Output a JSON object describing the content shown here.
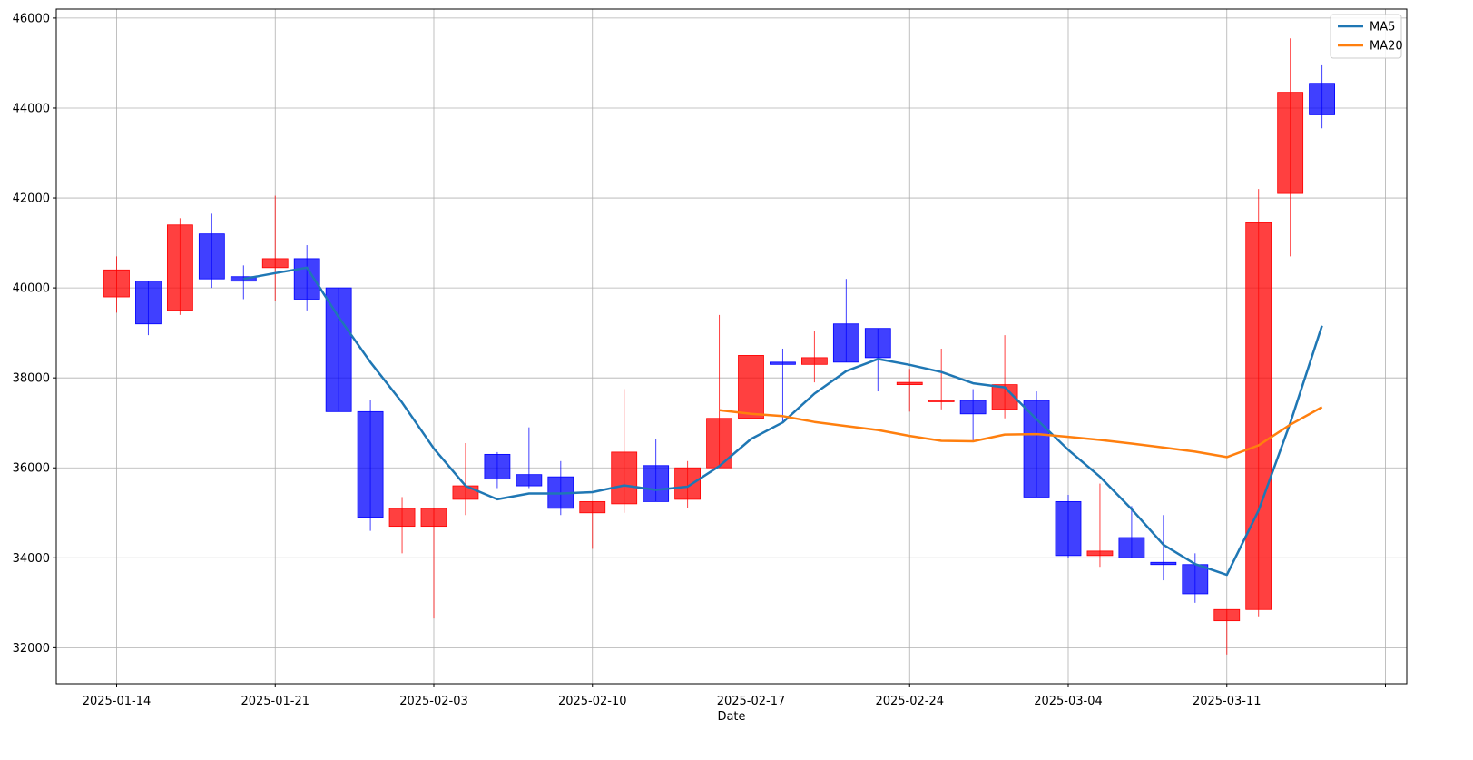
{
  "chart_data": {
    "type": "candlestick",
    "title": "",
    "xlabel": "Date",
    "ylabel": "",
    "ylim": [
      31200,
      46200
    ],
    "yticks": [
      32000,
      34000,
      36000,
      38000,
      40000,
      42000,
      44000,
      46000
    ],
    "xticks": [
      {
        "index": 0,
        "label": "2025-01-14"
      },
      {
        "index": 5,
        "label": "2025-01-21"
      },
      {
        "index": 10,
        "label": "2025-02-03"
      },
      {
        "index": 15,
        "label": "2025-02-10"
      },
      {
        "index": 20,
        "label": "2025-02-17"
      },
      {
        "index": 25,
        "label": "2025-02-24"
      },
      {
        "index": 30,
        "label": "2025-03-04"
      },
      {
        "index": 35,
        "label": "2025-03-11"
      },
      {
        "index": 40,
        "label": ""
      }
    ],
    "grid": true,
    "legend_position": "top-right",
    "colors": {
      "up": "#ff0000",
      "down": "#0000ff",
      "ma5": "#1f77b4",
      "ma20": "#ff7f0e",
      "grid": "#b0b0b0"
    },
    "candles": [
      {
        "open": 39800,
        "high": 40700,
        "low": 39450,
        "close": 40400
      },
      {
        "open": 40150,
        "high": 40150,
        "low": 38950,
        "close": 39200
      },
      {
        "open": 39500,
        "high": 41550,
        "low": 39400,
        "close": 41400
      },
      {
        "open": 41200,
        "high": 41650,
        "low": 40000,
        "close": 40200
      },
      {
        "open": 40250,
        "high": 40500,
        "low": 39750,
        "close": 40150
      },
      {
        "open": 40450,
        "high": 42050,
        "low": 39700,
        "close": 40650
      },
      {
        "open": 40650,
        "high": 40950,
        "low": 39500,
        "close": 39750
      },
      {
        "open": 40000,
        "high": 40000,
        "low": 37250,
        "close": 37250
      },
      {
        "open": 37250,
        "high": 37500,
        "low": 34600,
        "close": 34900
      },
      {
        "open": 34700,
        "high": 35350,
        "low": 34100,
        "close": 35100
      },
      {
        "open": 34700,
        "high": 35100,
        "low": 32650,
        "close": 35100
      },
      {
        "open": 35300,
        "high": 36550,
        "low": 34950,
        "close": 35600
      },
      {
        "open": 36300,
        "high": 36350,
        "low": 35550,
        "close": 35750
      },
      {
        "open": 35850,
        "high": 36900,
        "low": 35550,
        "close": 35600
      },
      {
        "open": 35800,
        "high": 36150,
        "low": 34950,
        "close": 35100
      },
      {
        "open": 35000,
        "high": 35250,
        "low": 34200,
        "close": 35250
      },
      {
        "open": 35200,
        "high": 37750,
        "low": 35000,
        "close": 36350
      },
      {
        "open": 36050,
        "high": 36650,
        "low": 35250,
        "close": 35250
      },
      {
        "open": 35300,
        "high": 36150,
        "low": 35100,
        "close": 36000
      },
      {
        "open": 36000,
        "high": 39400,
        "low": 36000,
        "close": 37100
      },
      {
        "open": 37100,
        "high": 39350,
        "low": 36250,
        "close": 38500
      },
      {
        "open": 38350,
        "high": 38650,
        "low": 37000,
        "close": 38300
      },
      {
        "open": 38300,
        "high": 39050,
        "low": 37900,
        "close": 38450
      },
      {
        "open": 39200,
        "high": 40200,
        "low": 38350,
        "close": 38350
      },
      {
        "open": 39100,
        "high": 39100,
        "low": 37700,
        "close": 38450
      },
      {
        "open": 37850,
        "high": 38200,
        "low": 37250,
        "close": 37900
      },
      {
        "open": 37500,
        "high": 38650,
        "low": 37300,
        "close": 37500
      },
      {
        "open": 37500,
        "high": 37750,
        "low": 36600,
        "close": 37200
      },
      {
        "open": 37300,
        "high": 38950,
        "low": 37100,
        "close": 37850
      },
      {
        "open": 37500,
        "high": 37700,
        "low": 35350,
        "close": 35350
      },
      {
        "open": 35250,
        "high": 35400,
        "low": 34000,
        "close": 34050
      },
      {
        "open": 34050,
        "high": 35650,
        "low": 33800,
        "close": 34150
      },
      {
        "open": 34450,
        "high": 35150,
        "low": 34000,
        "close": 34000
      },
      {
        "open": 33900,
        "high": 34950,
        "low": 33500,
        "close": 33850
      },
      {
        "open": 33850,
        "high": 34100,
        "low": 33000,
        "close": 33200
      },
      {
        "open": 32600,
        "high": 32850,
        "low": 31850,
        "close": 32850
      },
      {
        "open": 32850,
        "high": 42200,
        "low": 32700,
        "close": 41450
      },
      {
        "open": 42100,
        "high": 45550,
        "low": 40700,
        "close": 44350
      },
      {
        "open": 44550,
        "high": 44950,
        "low": 43550,
        "close": 43850
      }
    ],
    "series": [
      {
        "name": "MA5",
        "color": "#1f77b4",
        "points": [
          [
            4,
            40200
          ],
          [
            5,
            40330
          ],
          [
            6,
            40450
          ],
          [
            7,
            39350
          ],
          [
            8,
            38350
          ],
          [
            9,
            37450
          ],
          [
            10,
            36430
          ],
          [
            11,
            35600
          ],
          [
            12,
            35300
          ],
          [
            13,
            35430
          ],
          [
            14,
            35430
          ],
          [
            15,
            35460
          ],
          [
            16,
            35610
          ],
          [
            17,
            35510
          ],
          [
            18,
            35580
          ],
          [
            19,
            36040
          ],
          [
            20,
            36640
          ],
          [
            21,
            37010
          ],
          [
            22,
            37650
          ],
          [
            23,
            38150
          ],
          [
            24,
            38420
          ],
          [
            25,
            38290
          ],
          [
            26,
            38130
          ],
          [
            27,
            37880
          ],
          [
            28,
            37790
          ],
          [
            29,
            37080
          ],
          [
            30,
            36400
          ],
          [
            31,
            35800
          ],
          [
            32,
            35080
          ],
          [
            33,
            34290
          ],
          [
            34,
            33860
          ],
          [
            35,
            33620
          ],
          [
            36,
            35050
          ],
          [
            37,
            37000
          ],
          [
            38,
            39160
          ]
        ]
      },
      {
        "name": "MA20",
        "color": "#ff7f0e",
        "points": [
          [
            19,
            37280
          ],
          [
            20,
            37200
          ],
          [
            21,
            37150
          ],
          [
            22,
            37020
          ],
          [
            23,
            36930
          ],
          [
            24,
            36840
          ],
          [
            25,
            36710
          ],
          [
            26,
            36600
          ],
          [
            27,
            36590
          ],
          [
            28,
            36740
          ],
          [
            29,
            36750
          ],
          [
            30,
            36690
          ],
          [
            31,
            36620
          ],
          [
            32,
            36540
          ],
          [
            33,
            36450
          ],
          [
            34,
            36360
          ],
          [
            35,
            36240
          ],
          [
            36,
            36500
          ],
          [
            37,
            36960
          ],
          [
            38,
            37350
          ]
        ]
      }
    ]
  }
}
